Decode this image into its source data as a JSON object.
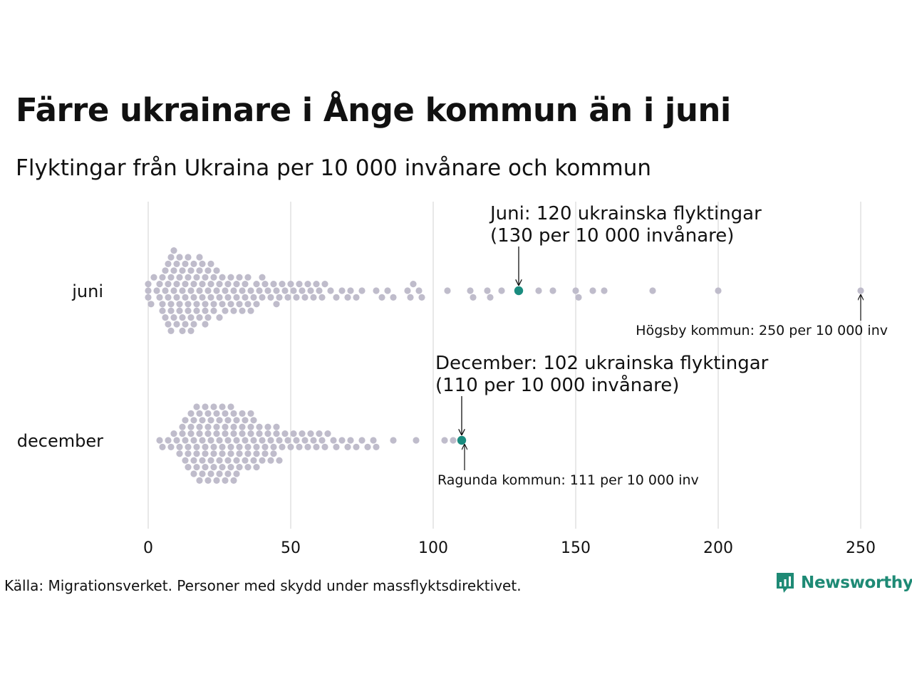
{
  "title": "Färre ukrainare i Ånge kommun än i juni",
  "subtitle": "Flyktingar från Ukraina per 10 000 invånare och kommun",
  "source": "Källa: Migrationsverket. Personer med skydd under massflyktsdirektivet.",
  "logo": {
    "text": "Newsworthy"
  },
  "colors": {
    "dot": "#bfbccb",
    "highlight": "#1a8c7f",
    "grid": "#d9d9d9",
    "logo": "#1e8a75"
  },
  "chart_data": {
    "type": "scatter",
    "subtype": "beeswarm",
    "orientation": "horizontal",
    "xlim": [
      0,
      250
    ],
    "x_ticks": [
      "0",
      "50",
      "100",
      "150",
      "200",
      "250"
    ],
    "grid": "vertical",
    "categories": [
      "juni",
      "december"
    ],
    "series": [
      {
        "category": "juni",
        "values": [
          0,
          0,
          0,
          1,
          2,
          3,
          4,
          4,
          5,
          5,
          5,
          6,
          6,
          6,
          7,
          7,
          7,
          7,
          8,
          8,
          8,
          8,
          8,
          9,
          9,
          9,
          9,
          10,
          10,
          10,
          10,
          11,
          11,
          11,
          11,
          12,
          12,
          12,
          12,
          13,
          13,
          13,
          13,
          14,
          14,
          14,
          14,
          15,
          15,
          15,
          15,
          16,
          16,
          16,
          16,
          17,
          17,
          17,
          18,
          18,
          18,
          18,
          19,
          19,
          19,
          20,
          20,
          20,
          20,
          21,
          21,
          21,
          22,
          22,
          22,
          23,
          23,
          23,
          24,
          24,
          25,
          25,
          25,
          26,
          26,
          27,
          27,
          28,
          28,
          29,
          29,
          30,
          30,
          31,
          31,
          32,
          32,
          33,
          33,
          34,
          34,
          35,
          35,
          36,
          36,
          37,
          38,
          38,
          39,
          40,
          40,
          41,
          42,
          43,
          44,
          45,
          45,
          46,
          47,
          48,
          49,
          50,
          51,
          52,
          53,
          54,
          55,
          56,
          57,
          58,
          59,
          60,
          61,
          62,
          64,
          66,
          68,
          70,
          71,
          73,
          75,
          80,
          82,
          84,
          86,
          91,
          92,
          93,
          95,
          96,
          105,
          113,
          114,
          119,
          120,
          124,
          137,
          142,
          150,
          151,
          156,
          160,
          177,
          200,
          250
        ],
        "highlight": {
          "value": 130,
          "label": [
            "Juni: 120 ukrainska flyktingar",
            "(130 per 10 000 invånare)"
          ]
        },
        "annotation": {
          "value": 250,
          "label": "Högsby kommun: 250 per 10 000 inv"
        }
      },
      {
        "category": "december",
        "values": [
          4,
          5,
          7,
          8,
          9,
          10,
          11,
          11,
          12,
          12,
          13,
          13,
          13,
          14,
          14,
          14,
          15,
          15,
          15,
          16,
          16,
          16,
          16,
          17,
          17,
          17,
          17,
          18,
          18,
          18,
          18,
          19,
          19,
          19,
          19,
          20,
          20,
          20,
          20,
          21,
          21,
          21,
          21,
          22,
          22,
          22,
          22,
          23,
          23,
          23,
          23,
          24,
          24,
          24,
          24,
          25,
          25,
          25,
          25,
          26,
          26,
          26,
          26,
          27,
          27,
          27,
          27,
          28,
          28,
          28,
          28,
          29,
          29,
          29,
          29,
          30,
          30,
          30,
          30,
          31,
          31,
          31,
          31,
          32,
          32,
          32,
          33,
          33,
          33,
          34,
          34,
          34,
          35,
          35,
          35,
          36,
          36,
          36,
          37,
          37,
          37,
          38,
          38,
          38,
          39,
          39,
          40,
          40,
          41,
          41,
          42,
          42,
          43,
          43,
          44,
          44,
          45,
          45,
          46,
          46,
          47,
          48,
          49,
          50,
          51,
          52,
          53,
          54,
          55,
          56,
          57,
          58,
          59,
          60,
          61,
          62,
          63,
          65,
          66,
          68,
          70,
          71,
          73,
          75,
          77,
          79,
          80,
          86,
          94,
          104,
          107
        ],
        "highlight": {
          "value": 110,
          "label": [
            "December: 102 ukrainska flyktingar",
            "(110 per 10 000 invånare)"
          ]
        },
        "annotation": {
          "value": 111,
          "label": "Ragunda kommun: 111 per 10 000 inv"
        }
      }
    ]
  }
}
